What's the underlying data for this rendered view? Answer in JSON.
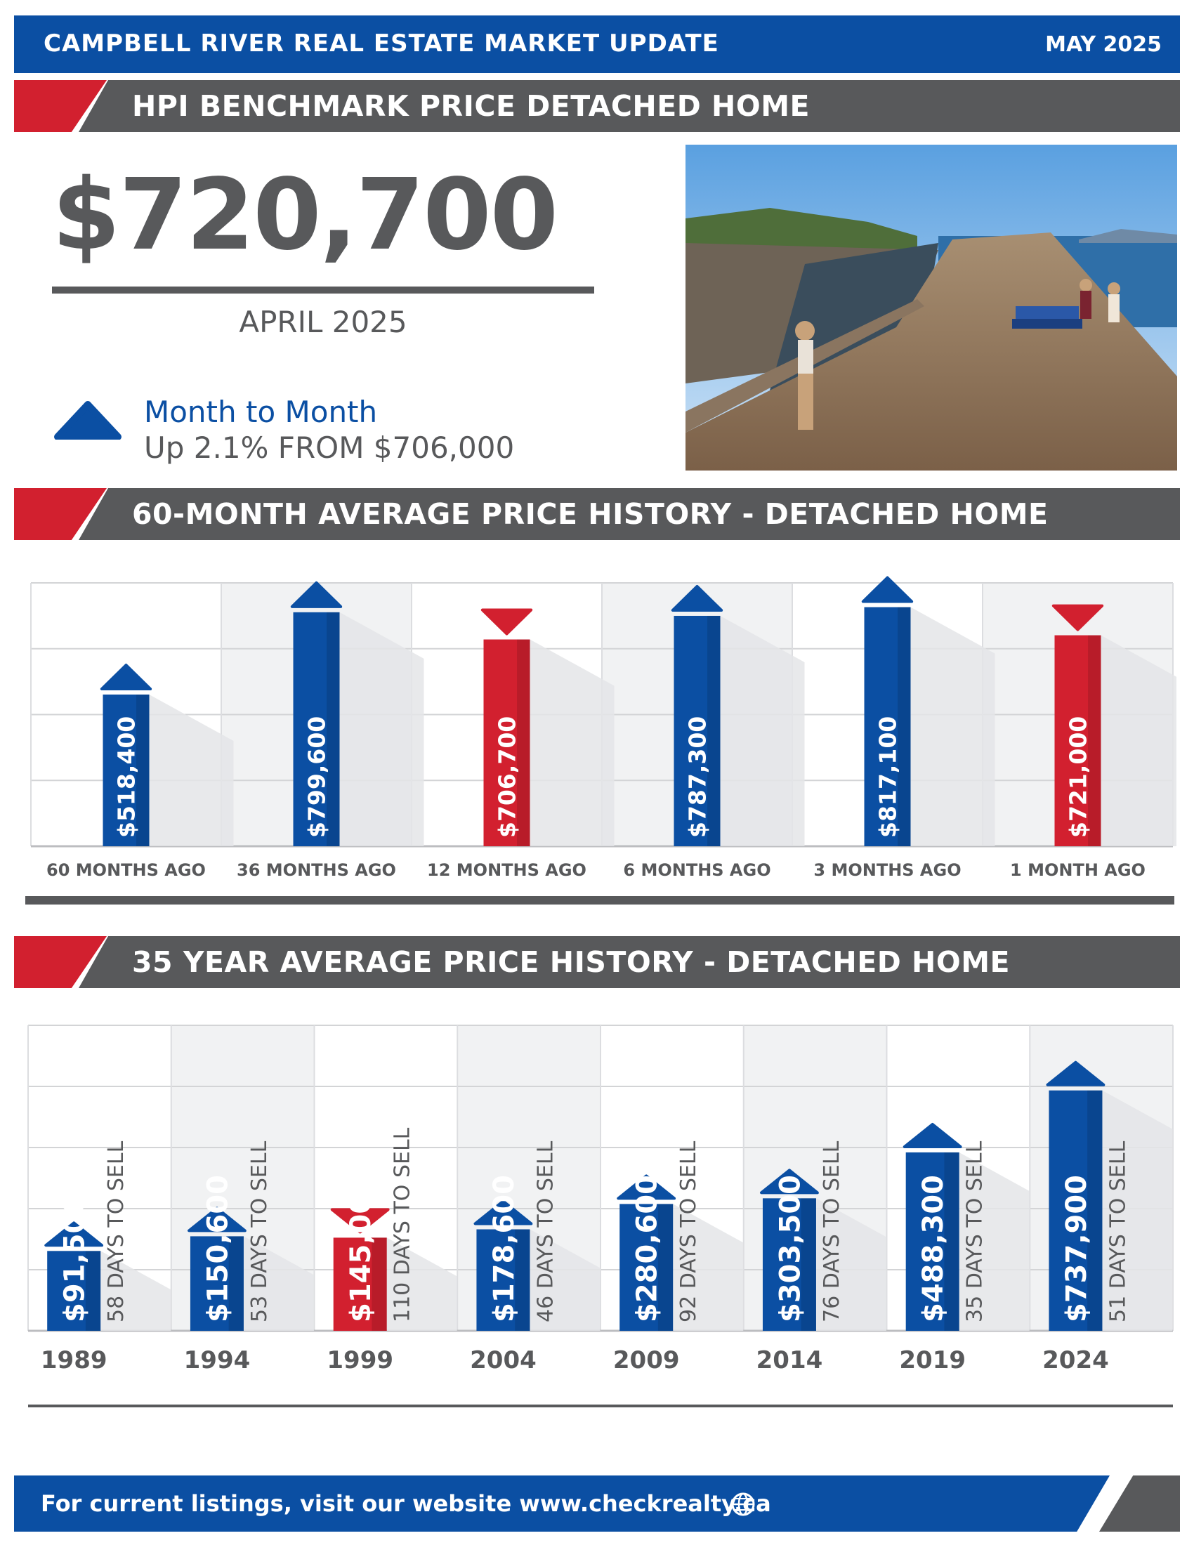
{
  "header": {
    "title": "CAMPBELL RIVER REAL ESTATE MARKET UPDATE",
    "date": "MAY 2025"
  },
  "sections": {
    "benchmark": "HPI BENCHMARK PRICE DETACHED HOME",
    "sixty_month": "60-MONTH AVERAGE PRICE HISTORY - DETACHED HOME",
    "thirty_five_year": "35 YEAR AVERAGE PRICE HISTORY - DETACHED HOME"
  },
  "benchmark": {
    "price": "$720,700",
    "month": "APRIL 2025",
    "change_title": "Month to Month",
    "change_text": "Up 2.1% FROM $706,000",
    "direction": "up"
  },
  "colors": {
    "blue": "#0b4fa3",
    "red": "#d2202f",
    "grey": "#58595b",
    "grid": "#e9eaeb"
  },
  "icons": {
    "change": "up-triangle-icon",
    "footer": "globe-icon"
  },
  "chart_data": [
    {
      "type": "bar",
      "categories": [
        "60 MONTHS AGO",
        "36 MONTHS AGO",
        "12 MONTHS AGO",
        "6 MONTHS AGO",
        "3 MONTHS AGO",
        "1 MONTH AGO"
      ],
      "values": [
        518400,
        799600,
        706700,
        787300,
        817100,
        721000
      ],
      "value_labels": [
        "$518,400",
        "$799,600",
        "$706,700",
        "$787,300",
        "$817,100",
        "$721,000"
      ],
      "trend": [
        "up",
        "up",
        "down",
        "up",
        "up",
        "down"
      ],
      "ylim": [
        0,
        900000
      ],
      "grid": true
    },
    {
      "type": "bar",
      "categories": [
        "1989",
        "1994",
        "1999",
        "2004",
        "2009",
        "2014",
        "2019",
        "2024"
      ],
      "values": [
        91500,
        150600,
        145000,
        178600,
        280600,
        303500,
        488300,
        737900
      ],
      "value_labels": [
        "$91,500",
        "$150,600",
        "$145,000",
        "$178,600",
        "$280,600",
        "$303,500",
        "$488,300",
        "$737,900"
      ],
      "days_to_sell": [
        "58 DAYS TO SELL",
        "53 DAYS TO SELL",
        "110 DAYS TO SELL",
        "46 DAYS TO SELL",
        "92 DAYS TO SELL",
        "76 DAYS TO SELL",
        "35 DAYS TO SELL",
        "51 DAYS TO SELL"
      ],
      "trend": [
        "up",
        "up",
        "down",
        "up",
        "up",
        "up",
        "up",
        "up"
      ],
      "grid": true
    }
  ],
  "footer": {
    "text": "For current listings, visit our website  www.checkrealty.ca"
  }
}
